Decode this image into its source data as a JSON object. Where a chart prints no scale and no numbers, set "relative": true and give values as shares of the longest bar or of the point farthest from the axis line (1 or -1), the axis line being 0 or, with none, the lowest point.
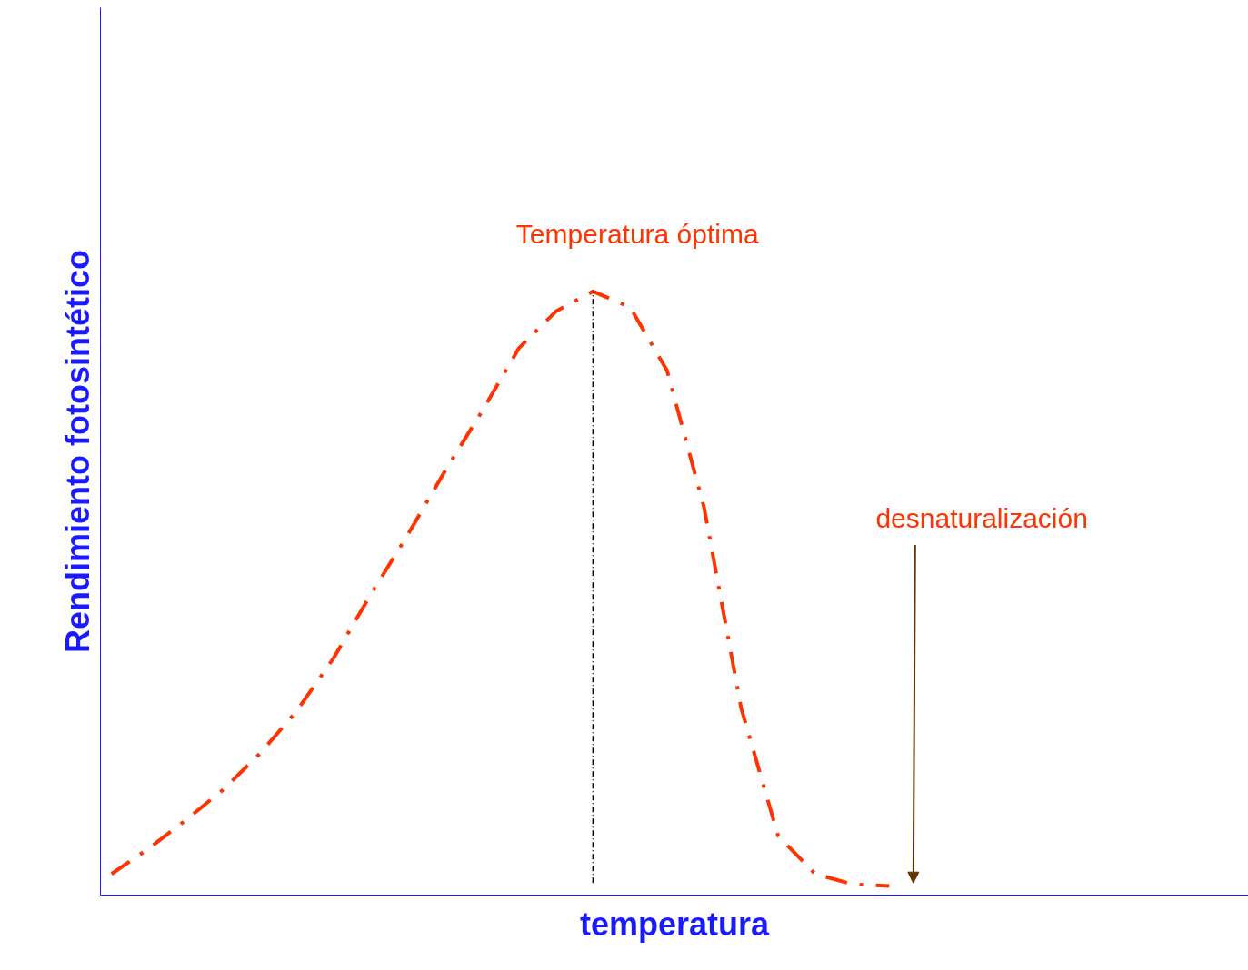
{
  "chart_data": {
    "type": "line",
    "relative": true,
    "xlabel": "temperatura",
    "ylabel": "Rendimiento fotosintético",
    "categories": [
      null,
      null,
      null,
      null,
      null,
      null,
      null,
      null,
      null,
      null,
      null,
      null,
      null,
      null,
      null,
      null,
      null,
      null,
      null,
      null,
      null,
      null,
      null,
      null,
      null,
      null,
      null,
      null,
      null,
      null,
      null
    ],
    "series": [
      {
        "color": "#ff3300",
        "values": [
          0.035,
          0.077,
          0.124,
          0.174,
          0.234,
          0.305,
          0.393,
          0.498,
          0.597,
          0.702,
          0.801,
          0.906,
          0.967,
          1.0,
          0.974,
          0.869,
          0.642,
          0.31,
          0.098,
          0.035,
          0.018,
          0.015,
          null,
          null,
          null,
          null,
          null,
          null,
          null,
          null,
          null
        ]
      }
    ],
    "line_style": "dashed",
    "marker": "none",
    "grid": false,
    "annotations": [
      "Temperatura óptima",
      "desnaturalización"
    ]
  }
}
